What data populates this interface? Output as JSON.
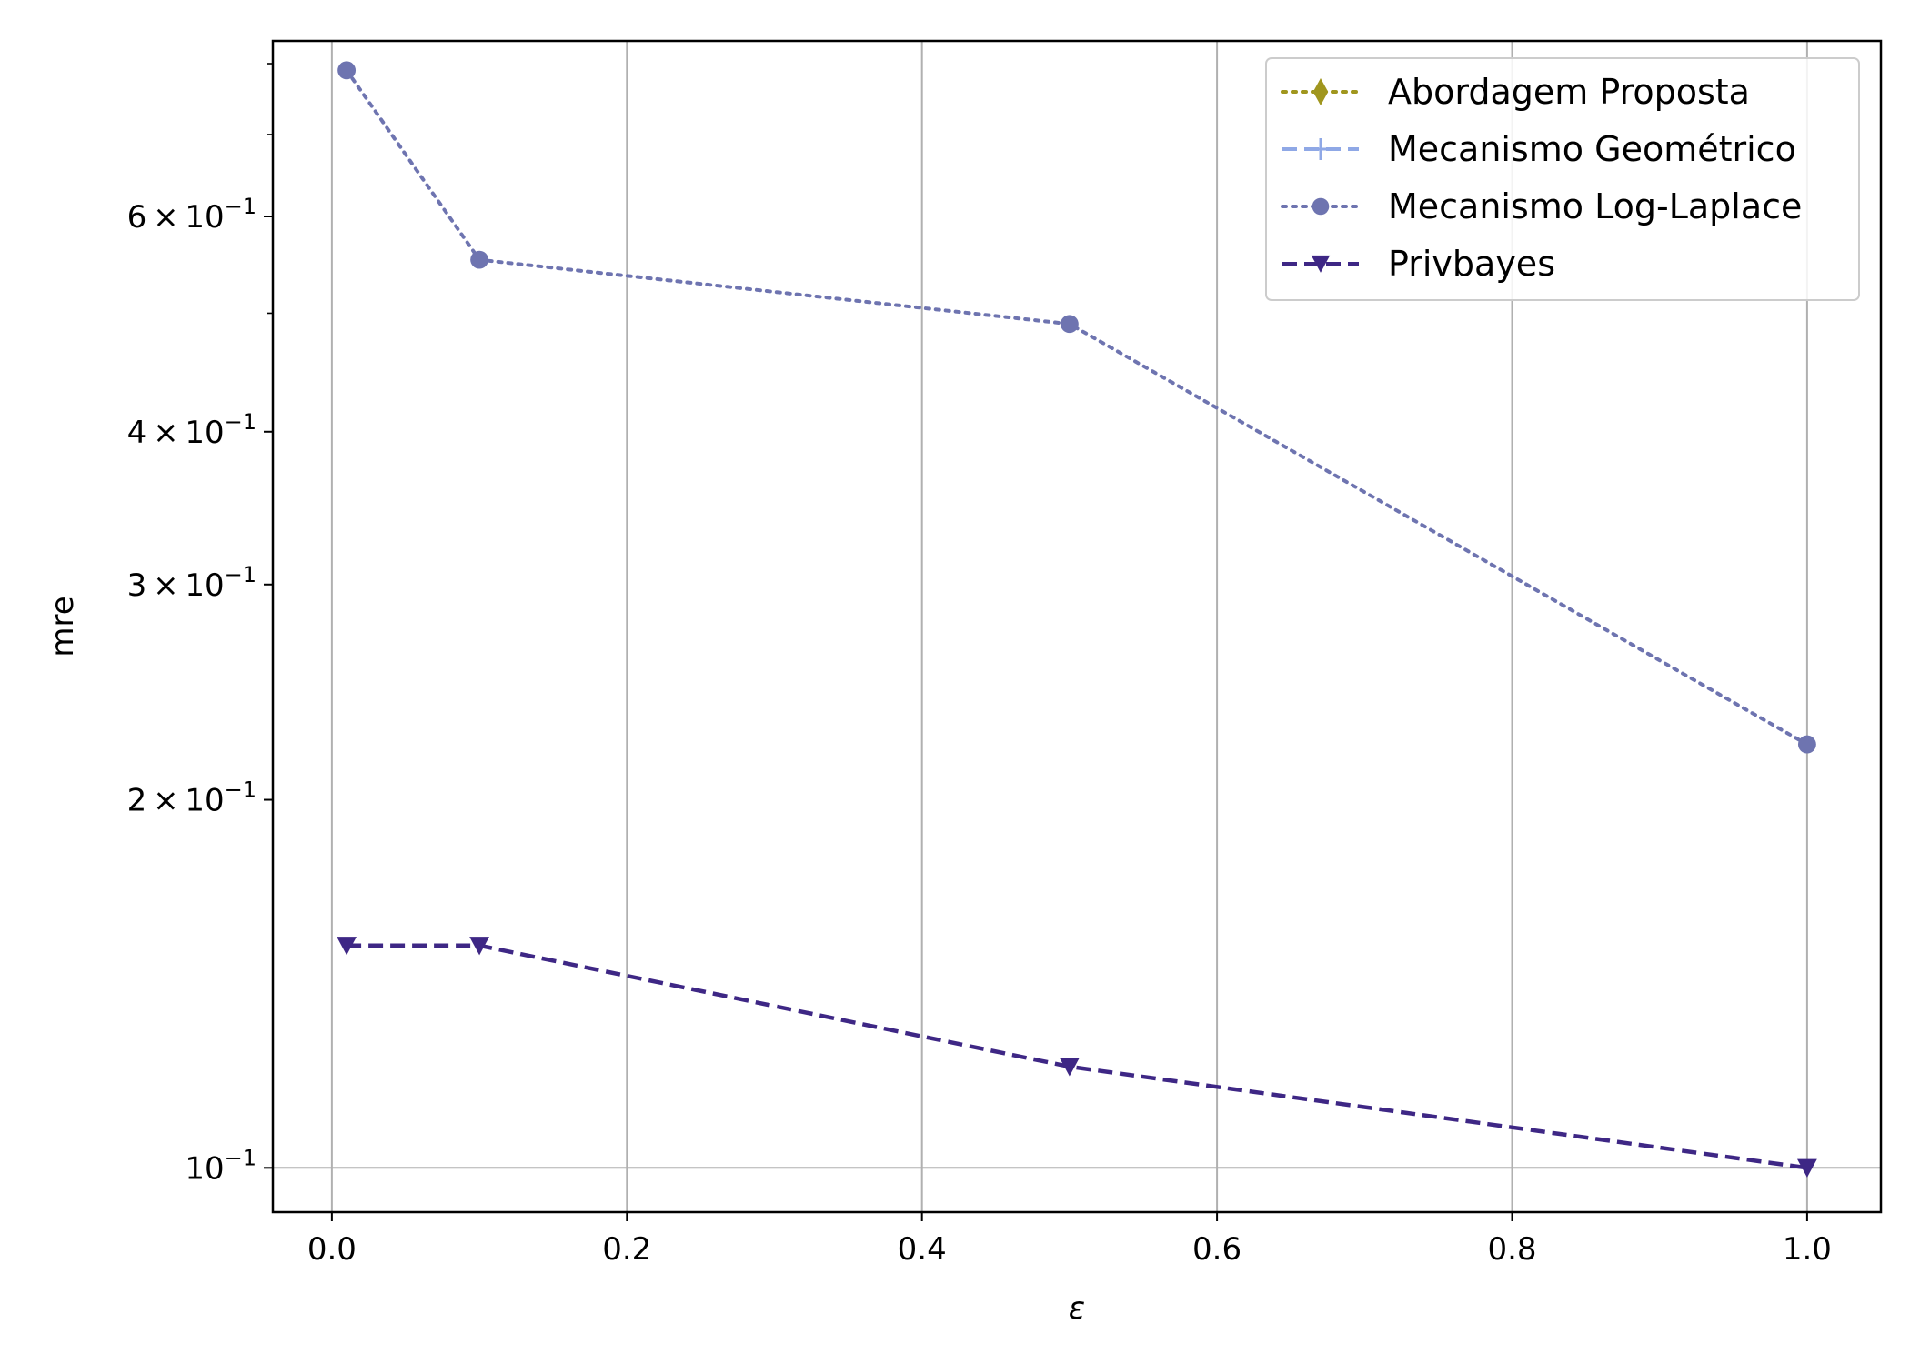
{
  "chart_data": {
    "type": "line",
    "xlabel": "ε",
    "ylabel": "mre",
    "xlim": [
      -0.04,
      1.05
    ],
    "ylim": [
      0.092,
      0.835
    ],
    "y_scale": "log",
    "grid": true,
    "legend_position": "upper-right",
    "x_ticks": [
      {
        "value": 0.0,
        "label": "0.0"
      },
      {
        "value": 0.2,
        "label": "0.2"
      },
      {
        "value": 0.4,
        "label": "0.4"
      },
      {
        "value": 0.6,
        "label": "0.6"
      },
      {
        "value": 0.8,
        "label": "0.8"
      },
      {
        "value": 1.0,
        "label": "1.0"
      }
    ],
    "y_ticks": [
      {
        "value": 0.1,
        "mantissa": "",
        "exponent": "−1"
      },
      {
        "value": 0.2,
        "mantissa": "2",
        "exponent": "−1"
      },
      {
        "value": 0.3,
        "mantissa": "3",
        "exponent": "−1"
      },
      {
        "value": 0.4,
        "mantissa": "4",
        "exponent": "−1"
      },
      {
        "value": 0.6,
        "mantissa": "6",
        "exponent": "−1"
      }
    ],
    "y_minor_ticks": [
      0.5,
      0.7,
      0.8
    ],
    "tick_base": "10",
    "tick_times": "×",
    "series": [
      {
        "name": "Abordagem Proposta",
        "color": "#a0961e",
        "dash": "dotted",
        "marker": "diamond",
        "x": [],
        "y": []
      },
      {
        "name": "Mecanismo Geométrico",
        "color": "#8fa8e6",
        "dash": "dashed",
        "marker": "plus",
        "x": [],
        "y": []
      },
      {
        "name": "Mecanismo Log-Laplace",
        "color": "#6e74b0",
        "dash": "dotted",
        "marker": "circle",
        "x": [
          0.01,
          0.1,
          0.5,
          1.0
        ],
        "y": [
          0.79,
          0.553,
          0.49,
          0.222
        ]
      },
      {
        "name": "Privbayes",
        "color": "#3e2785",
        "dash": "dashed",
        "marker": "triangle-down",
        "x": [
          0.01,
          0.1,
          0.5,
          1.0
        ],
        "y": [
          0.152,
          0.152,
          0.121,
          0.1
        ]
      }
    ]
  }
}
